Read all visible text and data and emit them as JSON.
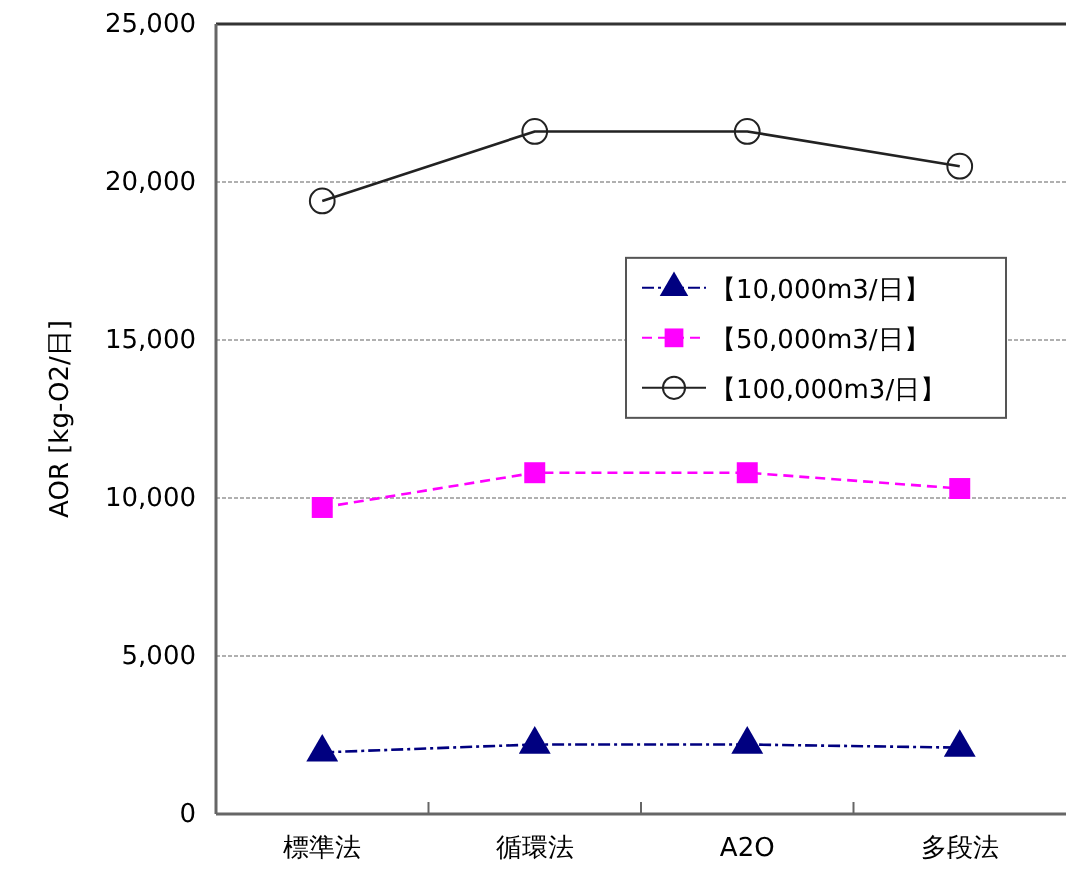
{
  "chart_data": {
    "type": "line",
    "ylabel": "AOR [kg-O2/日]",
    "categories": [
      "標準法",
      "循環法",
      "A2O",
      "多段法"
    ],
    "series": [
      {
        "name": "【10,000m3/日】",
        "color": "#000080",
        "values": [
          1950,
          2200,
          2200,
          2100
        ],
        "marker": "triangle",
        "line_style": "dotted"
      },
      {
        "name": "【50,000m3/日】",
        "color": "#ff00ff",
        "values": [
          9700,
          10800,
          10800,
          10300
        ],
        "marker": "square",
        "line_style": "dashed"
      },
      {
        "name": "【100,000m3/日】",
        "color": "#222222",
        "values": [
          19400,
          21600,
          21600,
          20500
        ],
        "marker": "circle",
        "line_style": "solid"
      }
    ],
    "ylim": [
      0,
      25000
    ],
    "yticks": [
      {
        "value": 0,
        "label": "0"
      },
      {
        "value": 5000,
        "label": "5,000"
      },
      {
        "value": 10000,
        "label": "10,000"
      },
      {
        "value": 15000,
        "label": "15,000"
      },
      {
        "value": 20000,
        "label": "20,000"
      },
      {
        "value": 25000,
        "label": "25,000"
      }
    ],
    "grid": "y",
    "legend": "right"
  }
}
